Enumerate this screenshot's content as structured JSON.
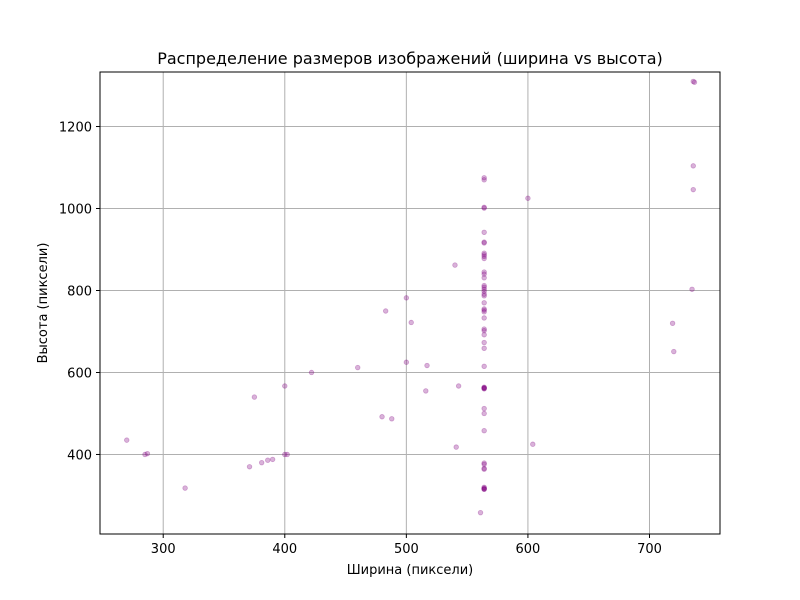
{
  "chart_data": {
    "type": "scatter",
    "title": "Распределение размеров изображений (ширина vs высота)",
    "xlabel": "Ширина (пиксели)",
    "ylabel": "Высота (пиксели)",
    "xlim": [
      248,
      758
    ],
    "ylim": [
      206,
      1333
    ],
    "xticks": [
      300,
      400,
      500,
      600,
      700
    ],
    "yticks": [
      400,
      600,
      800,
      1000,
      1200
    ],
    "grid": true,
    "point_color": "#800080",
    "point_opacity": 0.3,
    "points": [
      [
        270,
        435
      ],
      [
        285,
        400
      ],
      [
        287,
        402
      ],
      [
        318,
        318
      ],
      [
        371,
        370
      ],
      [
        375,
        540
      ],
      [
        381,
        380
      ],
      [
        386,
        386
      ],
      [
        390,
        388
      ],
      [
        400,
        400
      ],
      [
        402,
        400
      ],
      [
        400,
        567
      ],
      [
        422,
        600
      ],
      [
        460,
        612
      ],
      [
        480,
        492
      ],
      [
        483,
        750
      ],
      [
        488,
        487
      ],
      [
        500,
        782
      ],
      [
        500,
        625
      ],
      [
        504,
        722
      ],
      [
        516,
        555
      ],
      [
        517,
        617
      ],
      [
        540,
        862
      ],
      [
        541,
        418
      ],
      [
        543,
        567
      ],
      [
        561,
        258
      ],
      [
        564,
        1075
      ],
      [
        564,
        1070
      ],
      [
        564,
        1003
      ],
      [
        564,
        1001
      ],
      [
        564,
        942
      ],
      [
        564,
        918
      ],
      [
        564,
        916
      ],
      [
        564,
        891
      ],
      [
        564,
        887
      ],
      [
        564,
        883
      ],
      [
        564,
        878
      ],
      [
        564,
        845
      ],
      [
        564,
        840
      ],
      [
        564,
        831
      ],
      [
        564,
        812
      ],
      [
        564,
        808
      ],
      [
        564,
        803
      ],
      [
        564,
        798
      ],
      [
        564,
        791
      ],
      [
        564,
        787
      ],
      [
        564,
        770
      ],
      [
        564,
        755
      ],
      [
        564,
        752
      ],
      [
        564,
        748
      ],
      [
        564,
        733
      ],
      [
        564,
        706
      ],
      [
        564,
        702
      ],
      [
        564,
        692
      ],
      [
        564,
        673
      ],
      [
        564,
        659
      ],
      [
        564,
        615
      ],
      [
        564,
        564
      ],
      [
        564,
        563
      ],
      [
        564,
        562
      ],
      [
        564,
        561
      ],
      [
        564,
        560
      ],
      [
        564,
        512
      ],
      [
        564,
        500
      ],
      [
        564,
        458
      ],
      [
        564,
        379
      ],
      [
        564,
        376
      ],
      [
        564,
        366
      ],
      [
        564,
        364
      ],
      [
        564,
        320
      ],
      [
        564,
        318
      ],
      [
        564,
        316
      ],
      [
        564,
        315
      ],
      [
        564,
        316
      ],
      [
        600,
        1025
      ],
      [
        604,
        425
      ],
      [
        719,
        720
      ],
      [
        720,
        651
      ],
      [
        735,
        803
      ],
      [
        736,
        1104
      ],
      [
        736,
        1046
      ],
      [
        736,
        1310
      ],
      [
        737,
        1308
      ]
    ]
  }
}
